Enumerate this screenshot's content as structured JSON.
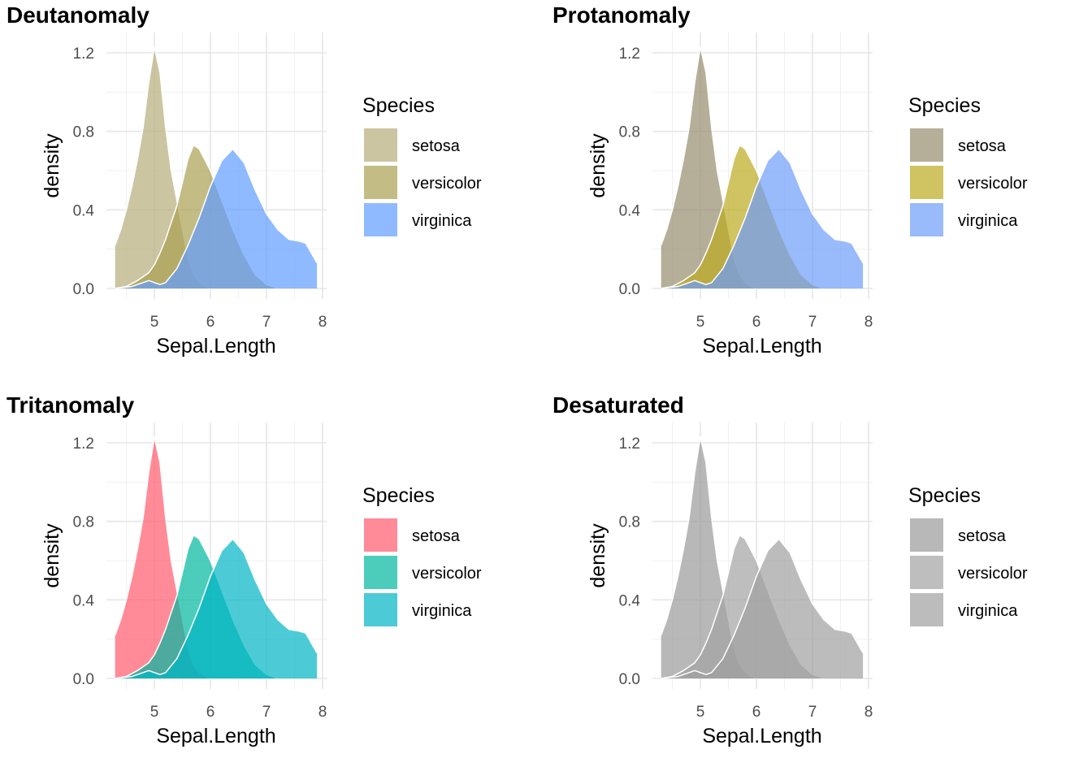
{
  "chart_data": [
    {
      "type": "area",
      "title": "Deutanomaly",
      "xlabel": "Sepal.Length",
      "ylabel": "density",
      "xlim": [
        4.3,
        7.9
      ],
      "ylim": [
        0,
        1.25
      ],
      "x_ticks": [
        "5",
        "6",
        "7",
        "8"
      ],
      "y_ticks": [
        "0.0",
        "0.4",
        "0.8",
        "1.2"
      ],
      "grid": true,
      "legend_title": "Species",
      "legend_position": "right",
      "fill_opacity": 0.7,
      "series": [
        {
          "name": "setosa",
          "color": "#b7ad7a",
          "x": [
            4.3,
            4.4,
            4.5,
            4.6,
            4.7,
            4.8,
            4.9,
            5.0,
            5.1,
            5.2,
            5.3,
            5.4,
            5.5,
            5.6,
            5.7,
            5.8,
            5.9,
            6.0
          ],
          "y": [
            0.22,
            0.3,
            0.4,
            0.52,
            0.66,
            0.82,
            1.05,
            1.23,
            1.1,
            0.82,
            0.6,
            0.45,
            0.3,
            0.15,
            0.07,
            0.03,
            0.01,
            0.0
          ]
        },
        {
          "name": "versicolor",
          "color": "#a99f51",
          "x": [
            4.3,
            4.5,
            4.7,
            4.9,
            5.0,
            5.1,
            5.2,
            5.4,
            5.6,
            5.7,
            5.8,
            6.0,
            6.2,
            6.4,
            6.6,
            6.8,
            7.0,
            7.2
          ],
          "y": [
            0.0,
            0.01,
            0.04,
            0.08,
            0.12,
            0.18,
            0.25,
            0.42,
            0.66,
            0.73,
            0.71,
            0.6,
            0.45,
            0.3,
            0.17,
            0.07,
            0.02,
            0.0
          ]
        },
        {
          "name": "virginica",
          "color": "#619cff",
          "x": [
            4.3,
            4.6,
            4.8,
            4.9,
            5.0,
            5.1,
            5.2,
            5.4,
            5.6,
            5.8,
            6.0,
            6.2,
            6.4,
            6.6,
            6.8,
            7.0,
            7.2,
            7.4,
            7.6,
            7.7,
            7.8,
            7.9
          ],
          "y": [
            0.0,
            0.01,
            0.03,
            0.04,
            0.03,
            0.02,
            0.03,
            0.1,
            0.22,
            0.36,
            0.52,
            0.65,
            0.71,
            0.64,
            0.5,
            0.38,
            0.3,
            0.25,
            0.24,
            0.23,
            0.18,
            0.13
          ]
        }
      ]
    },
    {
      "type": "area",
      "title": "Protanomaly",
      "xlabel": "Sepal.Length",
      "ylabel": "density",
      "xlim": [
        4.3,
        7.9
      ],
      "ylim": [
        0,
        1.25
      ],
      "x_ticks": [
        "5",
        "6",
        "7",
        "8"
      ],
      "y_ticks": [
        "0.0",
        "0.4",
        "0.8",
        "1.2"
      ],
      "grid": true,
      "legend_title": "Species",
      "legend_position": "right",
      "fill_opacity": 0.7,
      "series": [
        {
          "name": "setosa",
          "color": "#958c6e",
          "x": [
            4.3,
            4.4,
            4.5,
            4.6,
            4.7,
            4.8,
            4.9,
            5.0,
            5.1,
            5.2,
            5.3,
            5.4,
            5.5,
            5.6,
            5.7,
            5.8,
            5.9,
            6.0
          ],
          "y": [
            0.22,
            0.3,
            0.4,
            0.52,
            0.66,
            0.82,
            1.05,
            1.23,
            1.1,
            0.82,
            0.6,
            0.45,
            0.3,
            0.15,
            0.07,
            0.03,
            0.01,
            0.0
          ]
        },
        {
          "name": "versicolor",
          "color": "#bcaa1e",
          "x": [
            4.3,
            4.5,
            4.7,
            4.9,
            5.0,
            5.1,
            5.2,
            5.4,
            5.6,
            5.7,
            5.8,
            6.0,
            6.2,
            6.4,
            6.6,
            6.8,
            7.0,
            7.2
          ],
          "y": [
            0.0,
            0.01,
            0.04,
            0.08,
            0.12,
            0.18,
            0.25,
            0.42,
            0.66,
            0.73,
            0.71,
            0.6,
            0.45,
            0.3,
            0.17,
            0.07,
            0.02,
            0.0
          ]
        },
        {
          "name": "virginica",
          "color": "#6d9dfa",
          "x": [
            4.3,
            4.6,
            4.8,
            4.9,
            5.0,
            5.1,
            5.2,
            5.4,
            5.6,
            5.8,
            6.0,
            6.2,
            6.4,
            6.6,
            6.8,
            7.0,
            7.2,
            7.4,
            7.6,
            7.7,
            7.8,
            7.9
          ],
          "y": [
            0.0,
            0.01,
            0.03,
            0.04,
            0.03,
            0.02,
            0.03,
            0.1,
            0.22,
            0.36,
            0.52,
            0.65,
            0.71,
            0.64,
            0.5,
            0.38,
            0.3,
            0.25,
            0.24,
            0.23,
            0.18,
            0.13
          ]
        }
      ]
    },
    {
      "type": "area",
      "title": "Tritanomaly",
      "xlabel": "Sepal.Length",
      "ylabel": "density",
      "xlim": [
        4.3,
        7.9
      ],
      "ylim": [
        0,
        1.25
      ],
      "x_ticks": [
        "5",
        "6",
        "7",
        "8"
      ],
      "y_ticks": [
        "0.0",
        "0.4",
        "0.8",
        "1.2"
      ],
      "grid": true,
      "legend_title": "Species",
      "legend_position": "right",
      "fill_opacity": 0.7,
      "series": [
        {
          "name": "setosa",
          "color": "#ff5a6e",
          "x": [
            4.3,
            4.4,
            4.5,
            4.6,
            4.7,
            4.8,
            4.9,
            5.0,
            5.1,
            5.2,
            5.3,
            5.4,
            5.5,
            5.6,
            5.7,
            5.8,
            5.9,
            6.0
          ],
          "y": [
            0.22,
            0.3,
            0.4,
            0.52,
            0.66,
            0.82,
            1.05,
            1.23,
            1.1,
            0.82,
            0.6,
            0.45,
            0.3,
            0.15,
            0.07,
            0.03,
            0.01,
            0.0
          ]
        },
        {
          "name": "versicolor",
          "color": "#00b8a0",
          "x": [
            4.3,
            4.5,
            4.7,
            4.9,
            5.0,
            5.1,
            5.2,
            5.4,
            5.6,
            5.7,
            5.8,
            6.0,
            6.2,
            6.4,
            6.6,
            6.8,
            7.0,
            7.2
          ],
          "y": [
            0.0,
            0.01,
            0.04,
            0.08,
            0.12,
            0.18,
            0.25,
            0.42,
            0.66,
            0.73,
            0.71,
            0.6,
            0.45,
            0.3,
            0.17,
            0.07,
            0.02,
            0.0
          ]
        },
        {
          "name": "virginica",
          "color": "#00b5c5",
          "x": [
            4.3,
            4.6,
            4.8,
            4.9,
            5.0,
            5.1,
            5.2,
            5.4,
            5.6,
            5.8,
            6.0,
            6.2,
            6.4,
            6.6,
            6.8,
            7.0,
            7.2,
            7.4,
            7.6,
            7.7,
            7.8,
            7.9
          ],
          "y": [
            0.0,
            0.01,
            0.03,
            0.04,
            0.03,
            0.02,
            0.03,
            0.1,
            0.22,
            0.36,
            0.52,
            0.65,
            0.71,
            0.64,
            0.5,
            0.38,
            0.3,
            0.25,
            0.24,
            0.23,
            0.18,
            0.13
          ]
        }
      ]
    },
    {
      "type": "area",
      "title": "Desaturated",
      "xlabel": "Sepal.Length",
      "ylabel": "density",
      "xlim": [
        4.3,
        7.9
      ],
      "ylim": [
        0,
        1.25
      ],
      "x_ticks": [
        "5",
        "6",
        "7",
        "8"
      ],
      "y_ticks": [
        "0.0",
        "0.4",
        "0.8",
        "1.2"
      ],
      "grid": true,
      "legend_title": "Species",
      "legend_position": "right",
      "fill_opacity": 0.7,
      "series": [
        {
          "name": "setosa",
          "color": "#9a9a9a",
          "x": [
            4.3,
            4.4,
            4.5,
            4.6,
            4.7,
            4.8,
            4.9,
            5.0,
            5.1,
            5.2,
            5.3,
            5.4,
            5.5,
            5.6,
            5.7,
            5.8,
            5.9,
            6.0
          ],
          "y": [
            0.22,
            0.3,
            0.4,
            0.52,
            0.66,
            0.82,
            1.05,
            1.23,
            1.1,
            0.82,
            0.6,
            0.45,
            0.3,
            0.15,
            0.07,
            0.03,
            0.01,
            0.0
          ]
        },
        {
          "name": "versicolor",
          "color": "#a2a2a2",
          "x": [
            4.3,
            4.5,
            4.7,
            4.9,
            5.0,
            5.1,
            5.2,
            5.4,
            5.6,
            5.7,
            5.8,
            6.0,
            6.2,
            6.4,
            6.6,
            6.8,
            7.0,
            7.2
          ],
          "y": [
            0.0,
            0.01,
            0.04,
            0.08,
            0.12,
            0.18,
            0.25,
            0.42,
            0.66,
            0.73,
            0.71,
            0.6,
            0.45,
            0.3,
            0.17,
            0.07,
            0.02,
            0.0
          ]
        },
        {
          "name": "virginica",
          "color": "#9f9f9f",
          "x": [
            4.3,
            4.6,
            4.8,
            4.9,
            5.0,
            5.1,
            5.2,
            5.4,
            5.6,
            5.8,
            6.0,
            6.2,
            6.4,
            6.6,
            6.8,
            7.0,
            7.2,
            7.4,
            7.6,
            7.7,
            7.8,
            7.9
          ],
          "y": [
            0.0,
            0.01,
            0.03,
            0.04,
            0.03,
            0.02,
            0.03,
            0.1,
            0.22,
            0.36,
            0.52,
            0.65,
            0.71,
            0.64,
            0.5,
            0.38,
            0.3,
            0.25,
            0.24,
            0.23,
            0.18,
            0.13
          ]
        }
      ]
    }
  ]
}
